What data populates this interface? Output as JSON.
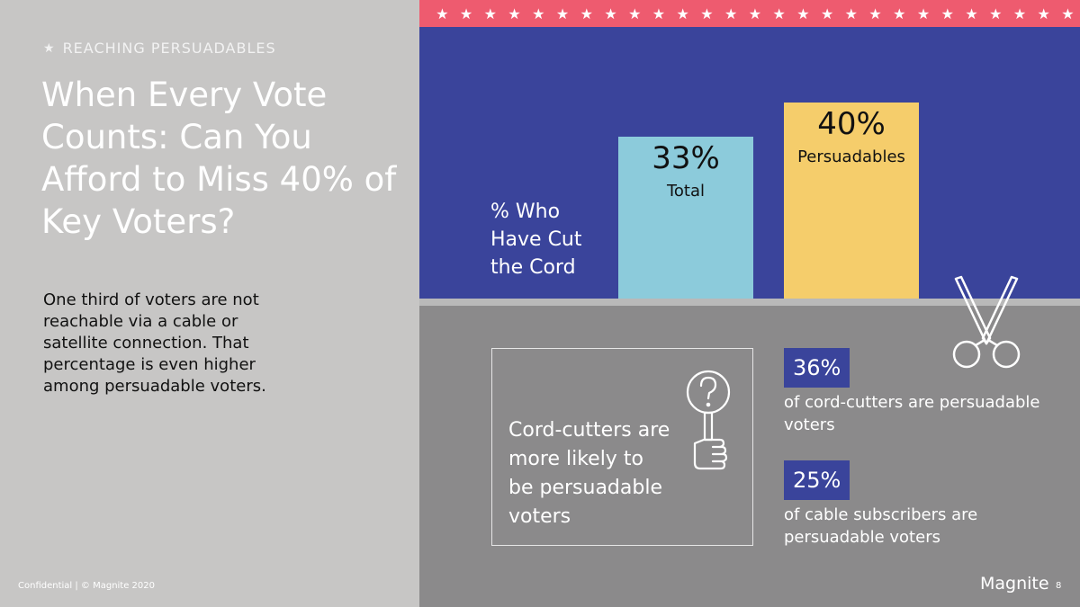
{
  "slide": {
    "kicker": "REACHING PERSUADABLES",
    "title": "When Every Vote Counts: Can You Afford to Miss 40% of Key Voters?",
    "body": "One third of voters are not reachable via a cable or satellite connection. That percentage is even higher among persuadable voters.",
    "footer": "Confidential | © Magnite 2020",
    "logo": "Magnite",
    "page_number": "8"
  },
  "chart_data": {
    "type": "bar",
    "ylabel": "% Who Have Cut the Cord",
    "categories": [
      "Total",
      "Persuadables"
    ],
    "values": [
      33,
      40
    ],
    "value_labels": [
      "33%",
      "40%"
    ],
    "colors": [
      "#8ccbdb",
      "#f5cd6b"
    ]
  },
  "callout": {
    "text": "Cord-cutters are more likely to be persuadable voters",
    "icon": "question-hand-sign-icon"
  },
  "stats": [
    {
      "value": "36%",
      "description": "of cord-cutters are persuadable voters"
    },
    {
      "value": "25%",
      "description": "of cable subscribers are persuadable voters"
    }
  ],
  "colors": {
    "blue": "#3a449b",
    "pink": "#ee5b6f",
    "gray_left": "#c7c6c5",
    "gray_bottom": "#8b8a8b"
  }
}
